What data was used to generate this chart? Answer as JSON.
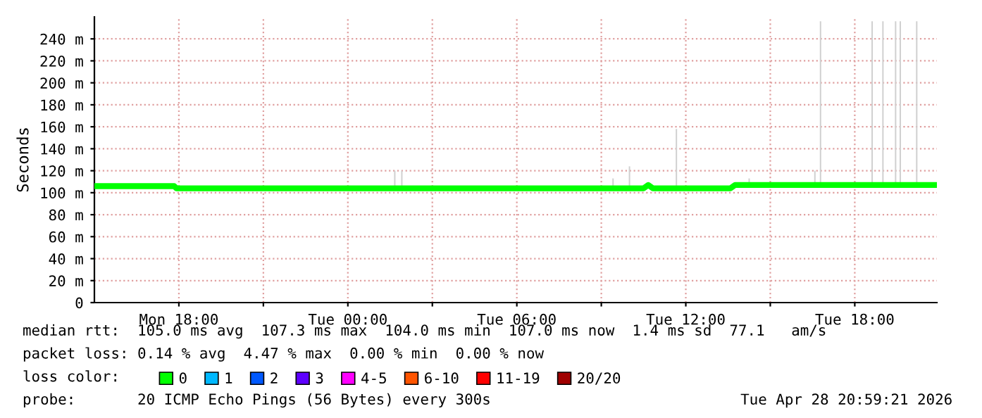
{
  "chart_data": {
    "type": "line",
    "ylabel": "Seconds",
    "xlim": [
      "2026-04-27T15:00",
      "2026-04-28T20:55"
    ],
    "xticks": [
      {
        "value": "2026-04-27T18:00",
        "label": "Mon 18:00"
      },
      {
        "value": "2026-04-27T21:00",
        "label": null
      },
      {
        "value": "2026-04-28T00:00",
        "label": "Tue 00:00"
      },
      {
        "value": "2026-04-28T03:00",
        "label": null
      },
      {
        "value": "2026-04-28T06:00",
        "label": "Tue 06:00"
      },
      {
        "value": "2026-04-28T09:00",
        "label": null
      },
      {
        "value": "2026-04-28T12:00",
        "label": "Tue 12:00"
      },
      {
        "value": "2026-04-28T15:00",
        "label": null
      },
      {
        "value": "2026-04-28T18:00",
        "label": "Tue 18:00"
      }
    ],
    "ylim": [
      0,
      260
    ],
    "yticks": [
      0,
      {
        "value": 20,
        "label": "20 m"
      },
      {
        "value": 40,
        "label": "40 m"
      },
      {
        "value": 60,
        "label": "60 m"
      },
      {
        "value": 80,
        "label": "80 m"
      },
      {
        "value": 100,
        "label": "100 m"
      },
      {
        "value": 120,
        "label": "120 m"
      },
      {
        "value": 140,
        "label": "140 m"
      },
      {
        "value": 160,
        "label": "160 m"
      },
      {
        "value": 180,
        "label": "180 m"
      },
      {
        "value": 200,
        "label": "200 m"
      },
      {
        "value": 220,
        "label": "220 m"
      },
      {
        "value": 240,
        "label": "240 m"
      }
    ],
    "grid": true,
    "legend": "bottom",
    "legend_title": "loss color:",
    "series": [
      {
        "type": "bar",
        "color": "#d0d0d0",
        "x": [
          "2026-04-28T01:40",
          "2026-04-28T01:55",
          "2026-04-28T09:25",
          "2026-04-28T10:00",
          "2026-04-28T11:40",
          "2026-04-28T14:15",
          "2026-04-28T16:35",
          "2026-04-28T16:47",
          "2026-04-28T18:37",
          "2026-04-28T19:00",
          "2026-04-28T19:27",
          "2026-04-28T19:37",
          "2026-04-28T20:12"
        ],
        "base": [
          104,
          104,
          104,
          104,
          104,
          107,
          107,
          107,
          107,
          107,
          107,
          107,
          107
        ],
        "values": [
          16,
          16,
          9,
          20,
          54,
          6,
          13,
          149,
          149,
          149,
          149,
          149,
          149
        ]
      },
      {
        "name": "0",
        "color": "#00ff00",
        "x": [
          "2026-04-27T15:00",
          "2026-04-27T17:50",
          "2026-04-27T17:55",
          "2026-04-28T10:30",
          "2026-04-28T10:40",
          "2026-04-28T10:50",
          "2026-04-28T13:35",
          "2026-04-28T13:45",
          "2026-04-28T20:55"
        ],
        "values": [
          106,
          106,
          104,
          104,
          107,
          104,
          104,
          107,
          107
        ]
      },
      {
        "name": "1",
        "color": "#00b8ff"
      },
      {
        "name": "2",
        "color": "#0059ff"
      },
      {
        "name": "3",
        "color": "#5e00ff"
      },
      {
        "name": "4-5",
        "color": "#ff00ff"
      },
      {
        "name": "6-10",
        "color": "#ff5500"
      },
      {
        "name": "11-19",
        "color": "#ff0000"
      },
      {
        "name": "20/20",
        "color": "#a00000"
      }
    ],
    "annotations": [
      "median rtt:  105.0 ms avg  107.3 ms max  104.0 ms min  107.0 ms now  1.4 ms sd  77.1   am/s",
      "packet loss: 0.14 % avg  4.47 % max  0.00 % min  0.00 % now",
      "probe:       20 ICMP Echo Pings (56 Bytes) every 300s",
      "Tue Apr 28 20:59:21 2026"
    ]
  }
}
